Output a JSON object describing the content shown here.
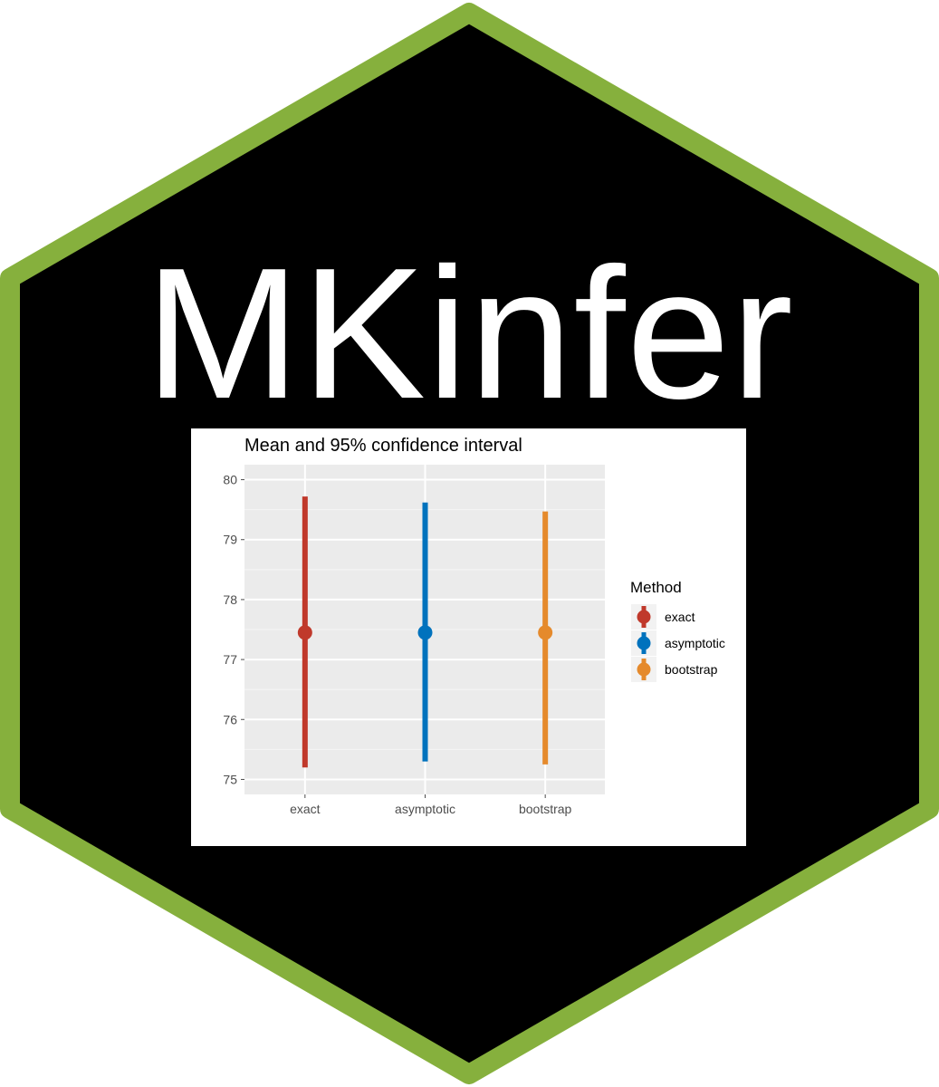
{
  "logo": {
    "title": "MKinfer",
    "border_color": "#86B03D",
    "fill_color": "#000000"
  },
  "chart_data": {
    "type": "scatter",
    "title": "Mean and 95% confidence interval",
    "xlabel": "",
    "ylabel": "",
    "categories": [
      "exact",
      "asymptotic",
      "bootstrap"
    ],
    "ylim": [
      74.75,
      80.25
    ],
    "yticks": [
      "75",
      "76",
      "77",
      "78",
      "79",
      "80"
    ],
    "grid": true,
    "legend": {
      "title": "Method",
      "position": "right"
    },
    "series": [
      {
        "name": "exact",
        "x": "exact",
        "mean": 77.45,
        "lower": 75.2,
        "upper": 79.72,
        "color": "#C0392B"
      },
      {
        "name": "asymptotic",
        "x": "asymptotic",
        "mean": 77.45,
        "lower": 75.3,
        "upper": 79.62,
        "color": "#0072BD"
      },
      {
        "name": "bootstrap",
        "x": "bootstrap",
        "mean": 77.45,
        "lower": 75.25,
        "upper": 79.47,
        "color": "#E58A2C"
      }
    ]
  }
}
